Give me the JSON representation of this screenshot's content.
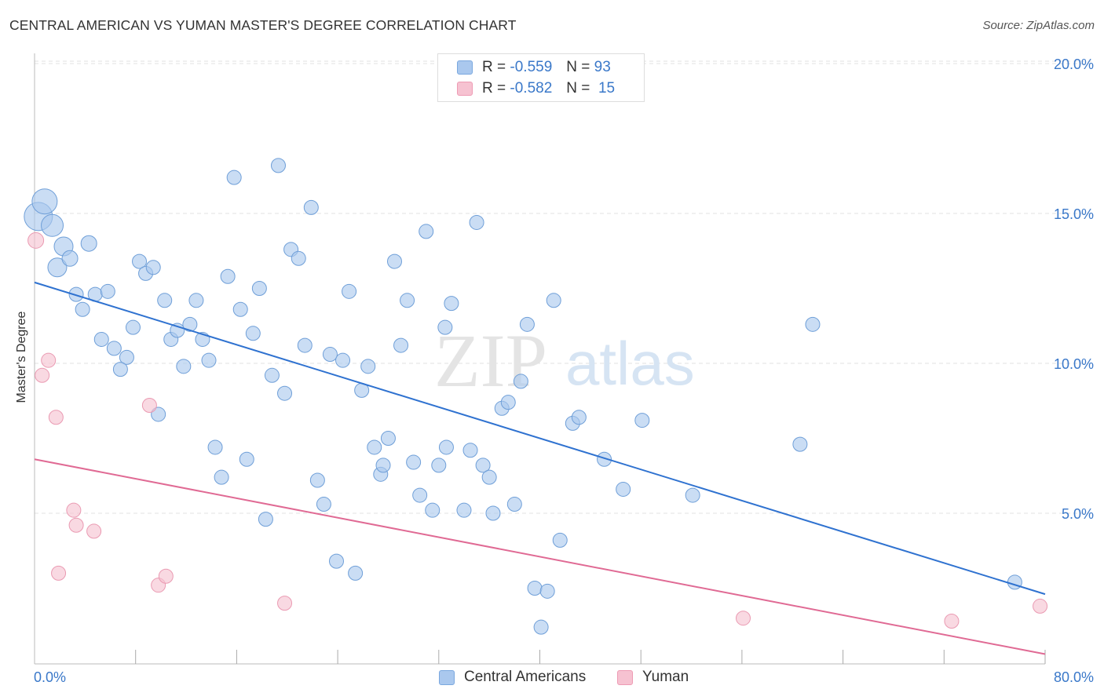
{
  "header": {
    "title": "CENTRAL AMERICAN VS YUMAN MASTER'S DEGREE CORRELATION CHART",
    "source": "Source: ZipAtlas.com"
  },
  "legend": {
    "rows": [
      {
        "r_label": "R =",
        "r_value": "-0.559",
        "n_label": "N =",
        "n_value": "93",
        "color": "#aac8ee",
        "border": "#7aa8df"
      },
      {
        "r_label": "R =",
        "r_value": "-0.582",
        "n_label": "N =",
        "n_value": "15",
        "color": "#f6c2d1",
        "border": "#ee9bb4"
      }
    ]
  },
  "bottom_legend": [
    {
      "label": "Central Americans",
      "color": "#aac8ee",
      "border": "#7aa8df"
    },
    {
      "label": "Yuman",
      "color": "#f6c2d1",
      "border": "#ee9bb4"
    }
  ],
  "watermark": {
    "zip": "ZIP",
    "atlas": "atlas"
  },
  "chart_data": {
    "type": "scatter",
    "title": "CENTRAL AMERICAN VS YUMAN MASTER'S DEGREE CORRELATION CHART",
    "xlabel": "",
    "ylabel": "Master's Degree",
    "xlim": [
      0,
      80
    ],
    "ylim": [
      0,
      20.5
    ],
    "x_tick_labels": [
      {
        "value": 0,
        "label": "0.0%"
      },
      {
        "value": 80,
        "label": "80.0%"
      }
    ],
    "y_tick_labels": [
      {
        "value": 5,
        "label": "5.0%"
      },
      {
        "value": 10,
        "label": "10.0%"
      },
      {
        "value": 15,
        "label": "15.0%"
      },
      {
        "value": 20,
        "label": "20.0%"
      }
    ],
    "x_minor_ticks": [
      8,
      16,
      24,
      32,
      40,
      48,
      56,
      64,
      72
    ],
    "grid": true,
    "series": [
      {
        "name": "Central Americans",
        "color": "#aac8ee",
        "edge": "#6f9fd8",
        "trend": {
          "x": [
            0,
            80
          ],
          "y": [
            12.7,
            2.3
          ],
          "color": "#2f72d0"
        },
        "points": [
          {
            "x": 0.3,
            "y": 14.9,
            "s": 18
          },
          {
            "x": 0.8,
            "y": 15.4,
            "s": 16
          },
          {
            "x": 1.4,
            "y": 14.6,
            "s": 14
          },
          {
            "x": 2.3,
            "y": 13.9,
            "s": 12
          },
          {
            "x": 1.8,
            "y": 13.2,
            "s": 12
          },
          {
            "x": 2.8,
            "y": 13.5,
            "s": 10
          },
          {
            "x": 4.3,
            "y": 14.0,
            "s": 10
          },
          {
            "x": 3.3,
            "y": 12.3,
            "s": 9
          },
          {
            "x": 4.8,
            "y": 12.3,
            "s": 9
          },
          {
            "x": 5.8,
            "y": 12.4,
            "s": 9
          },
          {
            "x": 3.8,
            "y": 11.8,
            "s": 9
          },
          {
            "x": 5.3,
            "y": 10.8,
            "s": 9
          },
          {
            "x": 6.3,
            "y": 10.5,
            "s": 9
          },
          {
            "x": 7.3,
            "y": 10.2,
            "s": 9
          },
          {
            "x": 6.8,
            "y": 9.8,
            "s": 9
          },
          {
            "x": 7.8,
            "y": 11.2,
            "s": 9
          },
          {
            "x": 8.3,
            "y": 13.4,
            "s": 9
          },
          {
            "x": 8.8,
            "y": 13.0,
            "s": 9
          },
          {
            "x": 9.4,
            "y": 13.2,
            "s": 9
          },
          {
            "x": 10.3,
            "y": 12.1,
            "s": 9
          },
          {
            "x": 10.8,
            "y": 10.8,
            "s": 9
          },
          {
            "x": 11.3,
            "y": 11.1,
            "s": 9
          },
          {
            "x": 12.3,
            "y": 11.3,
            "s": 9
          },
          {
            "x": 11.8,
            "y": 9.9,
            "s": 9
          },
          {
            "x": 12.8,
            "y": 12.1,
            "s": 9
          },
          {
            "x": 13.3,
            "y": 10.8,
            "s": 9
          },
          {
            "x": 13.8,
            "y": 10.1,
            "s": 9
          },
          {
            "x": 9.8,
            "y": 8.3,
            "s": 9
          },
          {
            "x": 14.3,
            "y": 7.2,
            "s": 9
          },
          {
            "x": 14.8,
            "y": 6.2,
            "s": 9
          },
          {
            "x": 15.3,
            "y": 12.9,
            "s": 9
          },
          {
            "x": 15.8,
            "y": 16.2,
            "s": 9
          },
          {
            "x": 16.3,
            "y": 11.8,
            "s": 9
          },
          {
            "x": 16.8,
            "y": 6.8,
            "s": 9
          },
          {
            "x": 17.3,
            "y": 11.0,
            "s": 9
          },
          {
            "x": 17.8,
            "y": 12.5,
            "s": 9
          },
          {
            "x": 18.3,
            "y": 4.8,
            "s": 9
          },
          {
            "x": 18.8,
            "y": 9.6,
            "s": 9
          },
          {
            "x": 19.3,
            "y": 16.6,
            "s": 9
          },
          {
            "x": 19.8,
            "y": 9.0,
            "s": 9
          },
          {
            "x": 20.3,
            "y": 13.8,
            "s": 9
          },
          {
            "x": 20.9,
            "y": 13.5,
            "s": 9
          },
          {
            "x": 21.4,
            "y": 10.6,
            "s": 9
          },
          {
            "x": 21.9,
            "y": 15.2,
            "s": 9
          },
          {
            "x": 22.4,
            "y": 6.1,
            "s": 9
          },
          {
            "x": 22.9,
            "y": 5.3,
            "s": 9
          },
          {
            "x": 23.4,
            "y": 10.3,
            "s": 9
          },
          {
            "x": 23.9,
            "y": 3.4,
            "s": 9
          },
          {
            "x": 24.4,
            "y": 10.1,
            "s": 9
          },
          {
            "x": 24.9,
            "y": 12.4,
            "s": 9
          },
          {
            "x": 25.4,
            "y": 3.0,
            "s": 9
          },
          {
            "x": 25.9,
            "y": 9.1,
            "s": 9
          },
          {
            "x": 26.4,
            "y": 9.9,
            "s": 9
          },
          {
            "x": 26.9,
            "y": 7.2,
            "s": 9
          },
          {
            "x": 27.4,
            "y": 6.3,
            "s": 9
          },
          {
            "x": 27.6,
            "y": 6.6,
            "s": 9
          },
          {
            "x": 28.0,
            "y": 7.5,
            "s": 9
          },
          {
            "x": 28.5,
            "y": 13.4,
            "s": 9
          },
          {
            "x": 29.0,
            "y": 10.6,
            "s": 9
          },
          {
            "x": 29.5,
            "y": 12.1,
            "s": 9
          },
          {
            "x": 30.0,
            "y": 6.7,
            "s": 9
          },
          {
            "x": 30.5,
            "y": 5.6,
            "s": 9
          },
          {
            "x": 31.0,
            "y": 14.4,
            "s": 9
          },
          {
            "x": 31.5,
            "y": 5.1,
            "s": 9
          },
          {
            "x": 32.0,
            "y": 6.6,
            "s": 9
          },
          {
            "x": 32.5,
            "y": 11.2,
            "s": 9
          },
          {
            "x": 32.6,
            "y": 7.2,
            "s": 9
          },
          {
            "x": 33.0,
            "y": 12.0,
            "s": 9
          },
          {
            "x": 34.0,
            "y": 5.1,
            "s": 9
          },
          {
            "x": 34.5,
            "y": 7.1,
            "s": 9
          },
          {
            "x": 35.0,
            "y": 14.7,
            "s": 9
          },
          {
            "x": 35.5,
            "y": 6.6,
            "s": 9
          },
          {
            "x": 36.0,
            "y": 6.2,
            "s": 9
          },
          {
            "x": 36.3,
            "y": 5.0,
            "s": 9
          },
          {
            "x": 37.0,
            "y": 8.5,
            "s": 9
          },
          {
            "x": 37.5,
            "y": 8.7,
            "s": 9
          },
          {
            "x": 38.0,
            "y": 5.3,
            "s": 9
          },
          {
            "x": 38.5,
            "y": 9.4,
            "s": 9
          },
          {
            "x": 39.0,
            "y": 11.3,
            "s": 9
          },
          {
            "x": 39.6,
            "y": 2.5,
            "s": 9
          },
          {
            "x": 40.1,
            "y": 1.2,
            "s": 9
          },
          {
            "x": 40.6,
            "y": 2.4,
            "s": 9
          },
          {
            "x": 41.1,
            "y": 12.1,
            "s": 9
          },
          {
            "x": 41.6,
            "y": 4.1,
            "s": 9
          },
          {
            "x": 42.6,
            "y": 8.0,
            "s": 9
          },
          {
            "x": 43.1,
            "y": 8.2,
            "s": 9
          },
          {
            "x": 45.1,
            "y": 6.8,
            "s": 9
          },
          {
            "x": 46.6,
            "y": 5.8,
            "s": 9
          },
          {
            "x": 48.1,
            "y": 8.1,
            "s": 9
          },
          {
            "x": 52.1,
            "y": 5.6,
            "s": 9
          },
          {
            "x": 60.6,
            "y": 7.3,
            "s": 9
          },
          {
            "x": 61.6,
            "y": 11.3,
            "s": 9
          },
          {
            "x": 77.6,
            "y": 2.7,
            "s": 9
          }
        ]
      },
      {
        "name": "Yuman",
        "color": "#f6c2d1",
        "edge": "#ea9ab2",
        "trend": {
          "x": [
            0,
            80
          ],
          "y": [
            6.8,
            0.3
          ],
          "color": "#e06a94"
        },
        "points": [
          {
            "x": 0.1,
            "y": 14.1,
            "s": 10
          },
          {
            "x": 0.6,
            "y": 9.6,
            "s": 9
          },
          {
            "x": 1.1,
            "y": 10.1,
            "s": 9
          },
          {
            "x": 1.7,
            "y": 8.2,
            "s": 9
          },
          {
            "x": 1.9,
            "y": 3.0,
            "s": 9
          },
          {
            "x": 3.1,
            "y": 5.1,
            "s": 9
          },
          {
            "x": 3.3,
            "y": 4.6,
            "s": 9
          },
          {
            "x": 4.7,
            "y": 4.4,
            "s": 9
          },
          {
            "x": 9.1,
            "y": 8.6,
            "s": 9
          },
          {
            "x": 9.8,
            "y": 2.6,
            "s": 9
          },
          {
            "x": 10.4,
            "y": 2.9,
            "s": 9
          },
          {
            "x": 19.8,
            "y": 2.0,
            "s": 9
          },
          {
            "x": 56.1,
            "y": 1.5,
            "s": 9
          },
          {
            "x": 72.6,
            "y": 1.4,
            "s": 9
          },
          {
            "x": 79.6,
            "y": 1.9,
            "s": 9
          }
        ]
      }
    ]
  }
}
